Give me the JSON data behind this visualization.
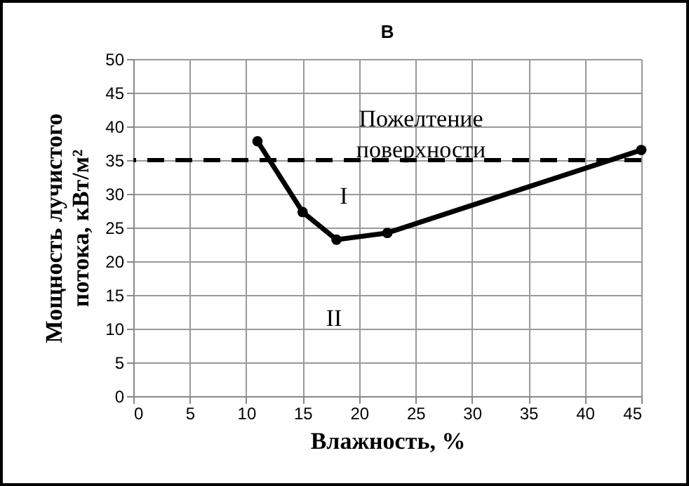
{
  "chart_data": {
    "type": "line",
    "title": "В",
    "xlabel": "Влажность, %",
    "ylabel": "Мощность лучистого потока, кВт/м²",
    "x": [
      11,
      15,
      18,
      22.5,
      45
    ],
    "series": [
      {
        "color": "#000000",
        "values": [
          37.8,
          27.3,
          23.2,
          24.2,
          36.5
        ]
      }
    ],
    "xlim": [
      0,
      45
    ],
    "xticks": [
      0,
      5,
      10,
      15,
      20,
      25,
      30,
      35,
      40,
      45
    ],
    "ylim": [
      0,
      50
    ],
    "yticks": [
      0,
      5,
      10,
      15,
      20,
      25,
      30,
      35,
      40,
      45,
      50
    ],
    "grid": true,
    "marker": "circle",
    "line_style": "solid",
    "ref_lines": [
      {
        "axis": "y",
        "value": 35,
        "color": "#000000",
        "line_style": "dashed"
      }
    ],
    "annotations": [
      "Пожелтение поверхности",
      "I",
      "II"
    ]
  }
}
